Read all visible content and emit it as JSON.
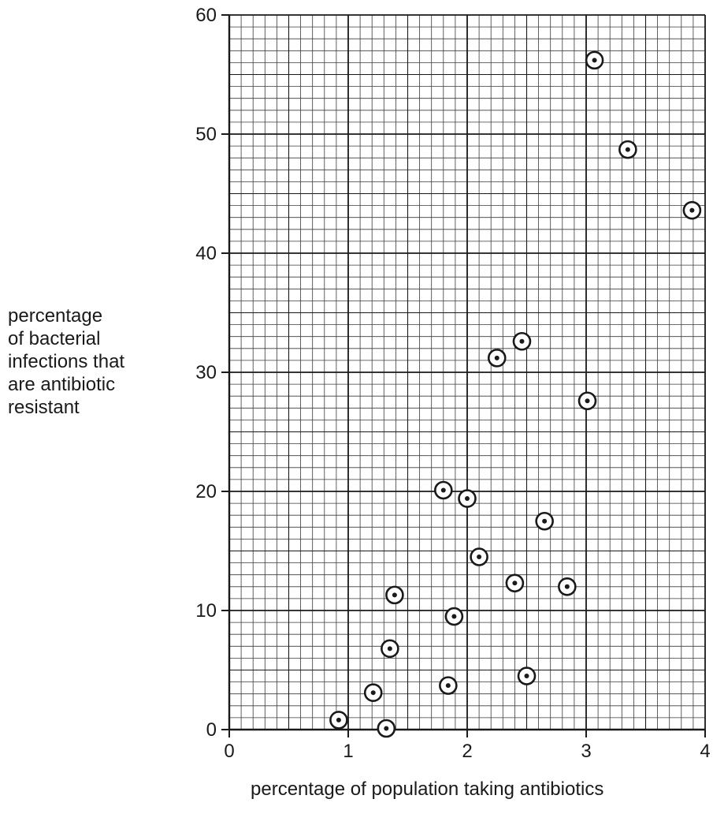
{
  "chart_data": {
    "type": "scatter",
    "title": "",
    "xlabel": "percentage of population taking antibiotics",
    "ylabel_lines": [
      "percentage",
      "of bacterial",
      "infections that",
      "are antibiotic",
      "resistant"
    ],
    "xlim": [
      0,
      4
    ],
    "ylim": [
      0,
      60
    ],
    "x_ticks": [
      "0",
      "1",
      "2",
      "3",
      "4"
    ],
    "y_ticks": [
      "0",
      "10",
      "20",
      "30",
      "40",
      "50",
      "60"
    ],
    "grid": true,
    "marker": "circled-dot",
    "colors": {
      "ink": "#1a1a1a",
      "minor_grid": "#3a3a3a",
      "major_grid": "#1a1a1a"
    },
    "points": [
      {
        "x": 0.92,
        "y": 0.8
      },
      {
        "x": 1.32,
        "y": 0.1
      },
      {
        "x": 1.21,
        "y": 3.1
      },
      {
        "x": 1.35,
        "y": 6.8
      },
      {
        "x": 1.39,
        "y": 11.3
      },
      {
        "x": 1.84,
        "y": 3.7
      },
      {
        "x": 1.89,
        "y": 9.5
      },
      {
        "x": 1.8,
        "y": 20.1
      },
      {
        "x": 2.0,
        "y": 19.4
      },
      {
        "x": 2.1,
        "y": 14.5
      },
      {
        "x": 2.4,
        "y": 12.3
      },
      {
        "x": 2.5,
        "y": 4.5
      },
      {
        "x": 2.25,
        "y": 31.2
      },
      {
        "x": 2.46,
        "y": 32.6
      },
      {
        "x": 2.65,
        "y": 17.5
      },
      {
        "x": 2.84,
        "y": 12.0
      },
      {
        "x": 3.01,
        "y": 27.6
      },
      {
        "x": 3.07,
        "y": 56.2
      },
      {
        "x": 3.35,
        "y": 48.7
      },
      {
        "x": 3.89,
        "y": 43.6
      }
    ]
  }
}
